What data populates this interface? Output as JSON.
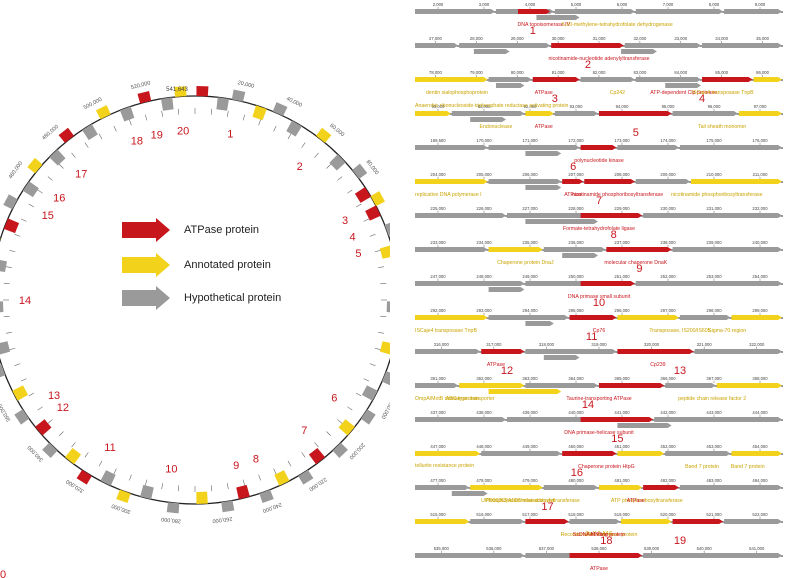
{
  "colors": {
    "atpase": "#c8161d",
    "annotated": "#f2d21b",
    "hypothetical": "#9a9a9a",
    "numlabel": "#c8161d",
    "geneLabel": "#c9a300",
    "atpLabel": "#c8161d"
  },
  "genome": {
    "length_label": "541,643",
    "ring_ticks": [
      "20,000",
      "40,000",
      "60,000",
      "80,000",
      "100,000",
      "120,000",
      "140,000",
      "160,000",
      "180,000",
      "200,000",
      "220,000",
      "240,000",
      "260,000",
      "280,000",
      "300,000",
      "320,000",
      "340,000",
      "360,000",
      "380,000",
      "400,000",
      "420,000",
      "440,000",
      "460,000",
      "480,000",
      "500,000",
      "520,000"
    ],
    "site_labels": [
      "1",
      "2",
      "3",
      "4",
      "5",
      "6",
      "7",
      "8",
      "9",
      "10",
      "11",
      "12",
      "13",
      "14",
      "15",
      "16",
      "17",
      "18",
      "19",
      "20"
    ]
  },
  "legend": [
    {
      "label": "ATPase protein",
      "kind": "atpase"
    },
    {
      "label": "Annotated protein",
      "kind": "annotated"
    },
    {
      "label": "Hypothetical protein",
      "kind": "hypothetical"
    }
  ],
  "tracks": [
    {
      "num": "1",
      "ticks": [
        "2,000",
        "3,000",
        "4,000",
        "5,000",
        "6,000",
        "7,000",
        "8,000",
        "9,000"
      ],
      "labels": [
        {
          "t": "DNA topoisomerase IV",
          "c": "atp"
        },
        {
          "t": "5,10-methylene-tetrahydrofolate dehydrogenase",
          "c": "ann"
        }
      ]
    },
    {
      "num": "2",
      "ticks": [
        "27,000",
        "28,000",
        "29,000",
        "30,000",
        "31,000",
        "32,000",
        "33,000",
        "34,000",
        "35,000"
      ],
      "labels": [
        {
          "t": "nicotinamide-nucleotide adenylyltransferase",
          "c": "atp"
        }
      ]
    },
    {
      "num": "3",
      "ticks": [
        "78,000",
        "79,000",
        "80,000",
        "81,000",
        "82,000",
        "83,000",
        "84,000",
        "85,000",
        "86,000"
      ],
      "labels": [
        {
          "t": "dentin sialophosphoprotein",
          "c": "ann"
        },
        {
          "t": "ATPase",
          "c": "atp"
        },
        {
          "t": "Cp242",
          "c": "ann"
        },
        {
          "t": "ATP-dependent Clp protease",
          "c": "atp"
        },
        {
          "t": "ISCaje4 transposase TnpB",
          "c": "ann"
        }
      ],
      "num2": "4"
    },
    {
      "num": "5",
      "ticks": [
        "90,000",
        "91,000",
        "92,000",
        "93,000",
        "94,000",
        "95,000",
        "96,000",
        "97,000"
      ],
      "labels": [
        {
          "t": "Anaerobic ribonucleoside-triphosphate reductase activating protein",
          "c": "ann"
        },
        {
          "t": "Endonuclease",
          "c": "ann"
        },
        {
          "t": "ATPase",
          "c": "atp"
        },
        {
          "t": "Tail sheath monomer",
          "c": "ann"
        }
      ]
    },
    {
      "num": "6",
      "ticks": [
        "169,500",
        "170,000",
        "171,000",
        "172,000",
        "173,000",
        "174,000",
        "175,000",
        "176,000"
      ],
      "labels": [
        {
          "t": "polynucleotide kinase",
          "c": "atp"
        }
      ]
    },
    {
      "num": "7",
      "ticks": [
        "204,000",
        "205,000",
        "206,000",
        "207,000",
        "208,000",
        "209,000",
        "210,000",
        "211,000"
      ],
      "labels": [
        {
          "t": "replicative DNA polymerase I",
          "c": "ann"
        },
        {
          "t": "ATPase",
          "c": "atp"
        },
        {
          "t": "nicotinamide phosphoribosyltransferase",
          "c": "atp"
        },
        {
          "t": "nicotinamide phosphoribosyltransferase",
          "c": "ann"
        }
      ]
    },
    {
      "num": "8",
      "ticks": [
        "225,000",
        "226,000",
        "227,000",
        "228,000",
        "229,000",
        "230,000",
        "231,000",
        "232,000"
      ],
      "labels": [
        {
          "t": "Formate-tetrahydrofolate ligase",
          "c": "atp"
        }
      ]
    },
    {
      "num": "9",
      "ticks": [
        "233,000",
        "234,000",
        "235,000",
        "236,000",
        "237,000",
        "238,000",
        "239,000",
        "240,000"
      ],
      "labels": [
        {
          "t": "Chaperone protein DnaJ",
          "c": "ann"
        },
        {
          "t": "molecular chaperone DnaK",
          "c": "atp"
        }
      ]
    },
    {
      "num": "10",
      "ticks": [
        "247,000",
        "248,000",
        "249,000",
        "250,000",
        "251,000",
        "252,000",
        "253,000",
        "254,000"
      ],
      "labels": [
        {
          "t": "DNA primase small subunit",
          "c": "atp"
        }
      ]
    },
    {
      "num": "11",
      "ticks": [
        "292,000",
        "293,000",
        "294,000",
        "295,000",
        "296,000",
        "297,000",
        "298,000",
        "299,000"
      ],
      "labels": [
        {
          "t": "ISCaje4 transposase TnpB",
          "c": "ann"
        },
        {
          "t": "Cp76",
          "c": "atp"
        },
        {
          "t": "Transposase, IS200/IS605",
          "c": "ann"
        },
        {
          "t": "Sigma-70 region",
          "c": "ann"
        }
      ]
    },
    {
      "num": "12",
      "ticks": [
        "316,000",
        "317,000",
        "318,000",
        "319,000",
        "320,000",
        "321,000",
        "322,000"
      ],
      "labels": [
        {
          "t": "ATPase",
          "c": "atp"
        },
        {
          "t": "Cp239",
          "c": "atp"
        }
      ],
      "num2": "13"
    },
    {
      "num": "14",
      "ticks": [
        "361,000",
        "362,000",
        "363,000",
        "364,000",
        "365,000",
        "366,000",
        "367,000",
        "368,000"
      ],
      "labels": [
        {
          "t": "OmpA/MotB domain protein",
          "c": "ann"
        },
        {
          "t": "ABC-type transporter",
          "c": "ann"
        },
        {
          "t": "Taurine-transporting ATPase",
          "c": "atp"
        },
        {
          "t": "peptide chain release factor 2",
          "c": "ann"
        }
      ]
    },
    {
      "num": "15",
      "ticks": [
        "437,000",
        "438,000",
        "439,000",
        "440,000",
        "441,000",
        "442,000",
        "443,000",
        "444,000"
      ],
      "labels": [
        {
          "t": "DNA primase-helicase subunit",
          "c": "atp"
        }
      ]
    },
    {
      "num": "16",
      "ticks": [
        "447,000",
        "448,000",
        "449,000",
        "450,000",
        "451,000",
        "452,000",
        "453,000",
        "454,000"
      ],
      "labels": [
        {
          "t": "tellurite resistance protein",
          "c": "ann"
        },
        {
          "t": "Chaperone protein HtpG",
          "c": "atp"
        },
        {
          "t": "Band 7 protein",
          "c": "ann"
        },
        {
          "t": "Band 7 protein",
          "c": "ann"
        }
      ]
    },
    {
      "num": "17",
      "ticks": [
        "477,000",
        "478,000",
        "479,000",
        "480,000",
        "481,000",
        "482,000",
        "483,000",
        "484,000"
      ],
      "labels": [
        {
          "t": "UPI0003CFA1D5 related cluster",
          "c": "ann"
        },
        {
          "t": "ATP phosphoribosyltransferase",
          "c": "ann"
        },
        {
          "t": "Phosphopantetheine adenylyltransferase",
          "c": "ann"
        },
        {
          "t": "ATPase",
          "c": "atp"
        }
      ]
    },
    {
      "num": "18",
      "ticks": [
        "515,000",
        "516,000",
        "517,000",
        "518,000",
        "519,000",
        "520,000",
        "521,000",
        "522,000"
      ],
      "labels": [
        {
          "t": "TerY-2-AAS",
          "c": "ann"
        },
        {
          "t": "ATPase",
          "c": "atp"
        },
        {
          "t": "Recombination and repair protein",
          "c": "ann"
        },
        {
          "t": "SsDNA binding protein",
          "c": "atp"
        }
      ],
      "num2": "19"
    },
    {
      "num": "20",
      "ticks": [
        "535,000",
        "536,000",
        "537,000",
        "538,000",
        "539,000",
        "540,000",
        "541,000"
      ],
      "labels": [
        {
          "t": "ATPase",
          "c": "atp"
        }
      ]
    }
  ]
}
